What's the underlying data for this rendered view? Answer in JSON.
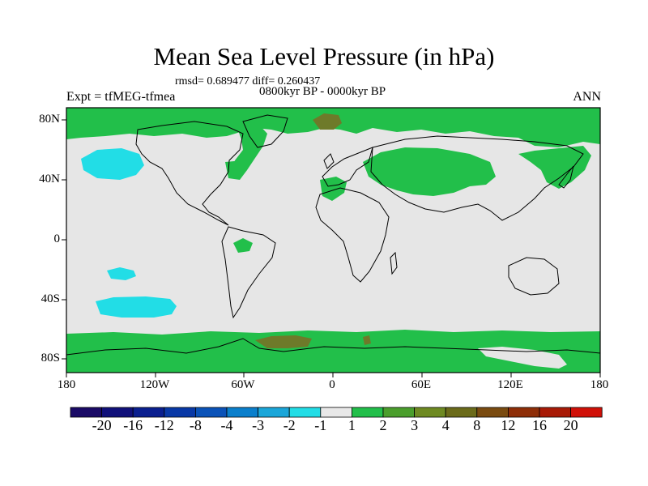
{
  "title": "Mean Sea Level Pressure (in hPa)",
  "stats_line": "rmsd= 0.689477 diff= 0.260437",
  "period_line": "0800kyr BP - 0000kyr BP",
  "experiment_label": "Expt = tfMEG-tfmea",
  "season_label": "ANN",
  "y_ticks": [
    "80N",
    "40N",
    "0",
    "40S",
    "80S"
  ],
  "x_ticks": [
    "180",
    "120W",
    "60W",
    "0",
    "60E",
    "120E",
    "180"
  ],
  "colorbar": {
    "labels": [
      "-20",
      "-16",
      "-12",
      "-8",
      "-4",
      "-3",
      "-2",
      "-1",
      "1",
      "2",
      "3",
      "4",
      "8",
      "12",
      "16",
      "20"
    ],
    "colors": [
      "#1a0a66",
      "#10107a",
      "#0a1f8f",
      "#0838a6",
      "#0a52b8",
      "#0a7fcc",
      "#1aa6d9",
      "#22dde6",
      "#e8e8e8",
      "#22bf4a",
      "#4a9e2c",
      "#6e8a22",
      "#6b6b1a",
      "#7a4b10",
      "#8e2e08",
      "#a81a06",
      "#d01008"
    ]
  },
  "map_colors": {
    "background": "#e6e6e6",
    "positive_1_2": "#22bf4a",
    "positive_3_4": "#6e7a2a",
    "negative_2_3": "#22dde6"
  }
}
